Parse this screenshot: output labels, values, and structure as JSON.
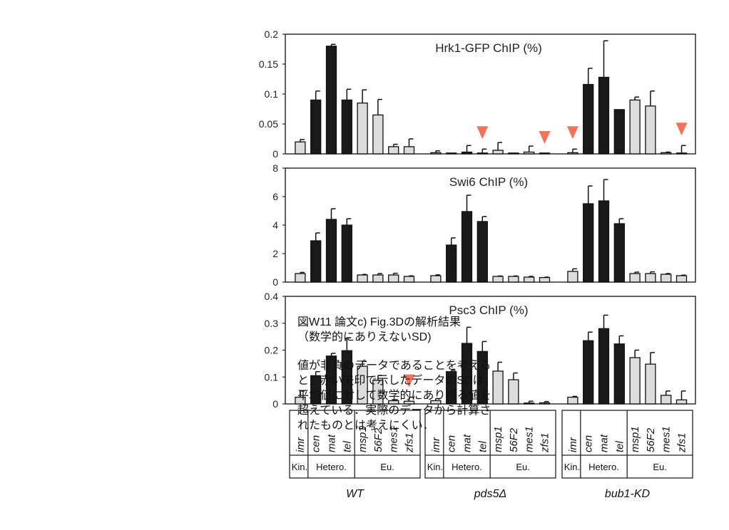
{
  "chart_data": {
    "type": "bar",
    "strains": [
      "WT",
      "pds5Δ",
      "bub1-KD"
    ],
    "loci": [
      "imr",
      "cen",
      "mat",
      "tel",
      "msp1",
      "56F2",
      "mes1",
      "zfs1"
    ],
    "region_groups": [
      {
        "label": "Kin.",
        "span": 1
      },
      {
        "label": "Hetero.",
        "span": 3
      },
      {
        "label": "Eu.",
        "span": 4
      }
    ],
    "bar_fill": {
      "Kin.": "#dcdcdc",
      "Hetero.": "#1a1a1a",
      "Eu.": "#dcdcdc"
    },
    "arrow_color": "#f0735a",
    "panels": [
      {
        "title": "Hrk1-GFP ChIP (%)",
        "ylim": [
          0,
          0.2
        ],
        "yticks": [
          "0.2",
          "0.15",
          "0.1",
          "0.05",
          "0"
        ],
        "series": [
          {
            "name": "WT",
            "values": [
              0.02,
              0.09,
              0.18,
              0.09,
              0.085,
              0.065,
              0.012,
              0.012
            ],
            "errors": [
              0.004,
              0.015,
              0.003,
              0.018,
              0.022,
              0.026,
              0.004,
              0.013
            ]
          },
          {
            "name": "pds5Δ",
            "values": [
              0.002,
              0.0,
              0.003,
              0.001,
              0.006,
              0.0,
              0.003,
              0.0
            ],
            "errors": [
              0.003,
              0.0,
              0.011,
              0.007,
              0.013,
              0.0,
              0.01,
              0.0
            ]
          },
          {
            "name": "bub1-KD",
            "values": [
              0.002,
              0.116,
              0.128,
              0.074,
              0.09,
              0.08,
              0.002,
              0.001
            ],
            "errors": [
              0.006,
              0.027,
              0.061,
              0.0,
              0.005,
              0.025,
              0.001,
              0.013
            ]
          }
        ],
        "arrows": [
          [
            "pds5Δ",
            "tel"
          ],
          [
            "pds5Δ",
            "zfs1"
          ],
          [
            "bub1-KD",
            "imr"
          ],
          [
            "bub1-KD",
            "zfs1"
          ]
        ]
      },
      {
        "title": "Swi6 ChIP (%)",
        "ylim": [
          0,
          8
        ],
        "yticks": [
          "8",
          "6",
          "4",
          "2",
          "0"
        ],
        "series": [
          {
            "name": "WT",
            "values": [
              0.6,
              2.9,
              4.4,
              4.0,
              0.5,
              0.5,
              0.5,
              0.4
            ],
            "errors": [
              0.08,
              0.55,
              0.75,
              0.45,
              0.04,
              0.1,
              0.12,
              0.04
            ]
          },
          {
            "name": "pds5Δ",
            "values": [
              0.45,
              2.6,
              4.95,
              4.25,
              0.4,
              0.4,
              0.35,
              0.32
            ],
            "errors": [
              0.06,
              0.5,
              1.15,
              0.35,
              0.03,
              0.03,
              0.05,
              0.03
            ]
          },
          {
            "name": "bub1-KD",
            "values": [
              0.75,
              5.5,
              5.7,
              4.1,
              0.6,
              0.6,
              0.55,
              0.45
            ],
            "errors": [
              0.18,
              1.25,
              1.5,
              0.35,
              0.1,
              0.12,
              0.05,
              0.04
            ]
          }
        ],
        "arrows": []
      },
      {
        "title": "Psc3 ChIP (%)",
        "ylim": [
          0,
          0.4
        ],
        "yticks": [
          "0.4",
          "0.3",
          "0.2",
          "0.1",
          "0"
        ],
        "series": [
          {
            "name": "WT",
            "values": [
              0.025,
              0.105,
              0.178,
              0.198,
              0.14,
              0.088,
              0.012,
              0.01
            ],
            "errors": [
              0.023,
              0.015,
              0.01,
              0.048,
              0.018,
              0.018,
              0.004,
              0.015
            ]
          },
          {
            "name": "pds5Δ",
            "values": [
              0.012,
              0.12,
              0.225,
              0.195,
              0.122,
              0.09,
              0.003,
              0.004
            ],
            "errors": [
              0.008,
              0.005,
              0.06,
              0.037,
              0.033,
              0.025,
              0.007,
              0.005
            ]
          },
          {
            "name": "bub1-KD",
            "values": [
              0.025,
              0.235,
              0.28,
              0.223,
              0.172,
              0.148,
              0.032,
              0.015
            ],
            "errors": [
              0.003,
              0.032,
              0.05,
              0.03,
              0.028,
              0.043,
              0.016,
              0.033
            ]
          }
        ],
        "arrows": [
          [
            "WT",
            "zfs1"
          ]
        ]
      }
    ]
  },
  "annotation": {
    "title_lines": [
      "図W11 論文c) Fig.3Dの解析結果",
      "（数学的にありえないSD)"
    ],
    "body_lines": [
      "値が非負のデータであることを考える",
      "と，赤い矢印で示したデータのSDは，",
      "平均値に対して数学的にあり得る値を",
      "超えている．実際のデータから計算さ",
      "れたものとは考えにくい．"
    ]
  }
}
